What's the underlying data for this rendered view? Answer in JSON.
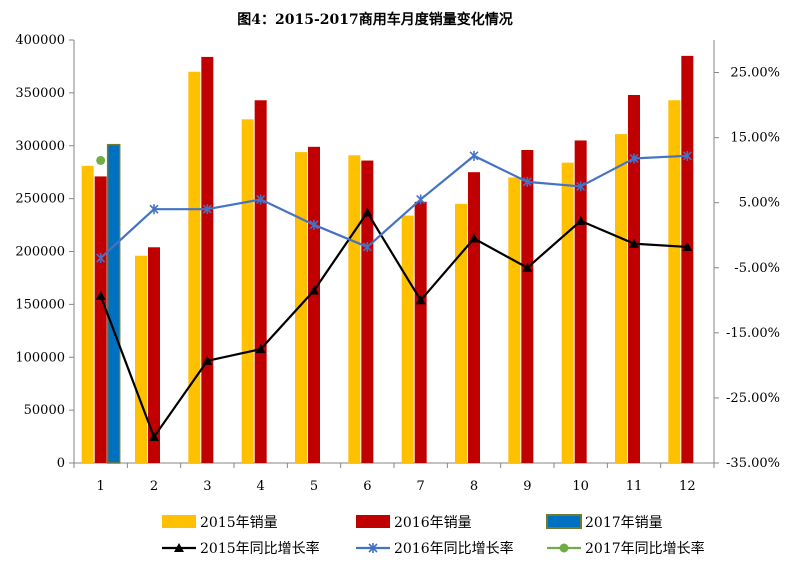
{
  "chart_data": {
    "type": "bar",
    "title": "图4：2015-2017商用车月度销量变化情况",
    "categories": [
      "1",
      "2",
      "3",
      "4",
      "5",
      "6",
      "7",
      "8",
      "9",
      "10",
      "11",
      "12"
    ],
    "y_left": {
      "min": 0,
      "max": 400000,
      "step": 50000,
      "tick_labels": [
        "0",
        "50000",
        "100000",
        "150000",
        "200000",
        "250000",
        "300000",
        "350000",
        "400000"
      ]
    },
    "y_right": {
      "min": -35,
      "max": 30,
      "step": 10,
      "unit": "%",
      "tick_labels": [
        "-35.00%",
        "-25.00%",
        "-15.00%",
        "-5.00%",
        "5.00%",
        "15.00%",
        "25.00%"
      ]
    },
    "bar_series": [
      {
        "name": "2015年销量",
        "color": "#FFC000",
        "values": [
          281000,
          196000,
          370000,
          325000,
          294000,
          291000,
          234000,
          245000,
          270000,
          284000,
          311000,
          343000
        ]
      },
      {
        "name": "2016年销量",
        "color": "#C00000",
        "values": [
          271000,
          204000,
          384000,
          343000,
          299000,
          286000,
          247000,
          275000,
          296000,
          305000,
          348000,
          385000
        ]
      },
      {
        "name": "2017年销量",
        "color": "#0070C0",
        "border": "#6E7B30",
        "values": [
          301000,
          null,
          null,
          null,
          null,
          null,
          null,
          null,
          null,
          null,
          null,
          null
        ]
      }
    ],
    "line_series": [
      {
        "name": "2015年同比增长率",
        "color": "#000000",
        "marker": "triangle",
        "values": [
          -9.3,
          -31.0,
          -19.3,
          -17.5,
          -8.5,
          3.5,
          -10.0,
          -0.5,
          -5.0,
          2.2,
          -1.3,
          -1.8
        ]
      },
      {
        "name": "2016年同比增长率",
        "color": "#4472C4",
        "marker": "star",
        "values": [
          -3.5,
          4.0,
          4.0,
          5.5,
          1.6,
          -1.8,
          5.5,
          12.2,
          8.2,
          7.5,
          11.8,
          12.2
        ]
      },
      {
        "name": "2017年同比增长率",
        "color": "#70AD47",
        "marker": "circle",
        "values": [
          11.5,
          null,
          null,
          null,
          null,
          null,
          null,
          null,
          null,
          null,
          null,
          null
        ]
      }
    ],
    "grid": false,
    "legend_position": "bottom"
  }
}
